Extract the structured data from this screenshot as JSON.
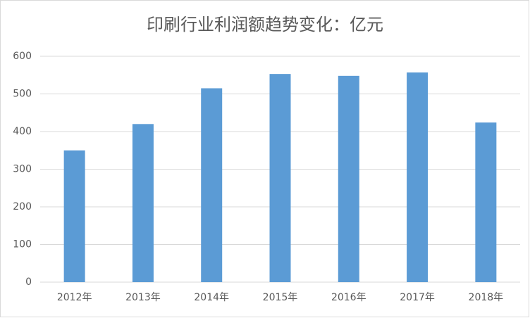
{
  "chart_data": {
    "type": "bar",
    "title": "印刷行业利润额趋势变化：亿元",
    "categories": [
      "2012年",
      "2013年",
      "2014年",
      "2015年",
      "2016年",
      "2017年",
      "2018年"
    ],
    "values": [
      350,
      420,
      515,
      553,
      548,
      557,
      424
    ],
    "color": "#5b9bd5",
    "ylim": [
      0,
      600
    ],
    "yticks": [
      0,
      100,
      200,
      300,
      400,
      500,
      600
    ],
    "grid": true
  }
}
